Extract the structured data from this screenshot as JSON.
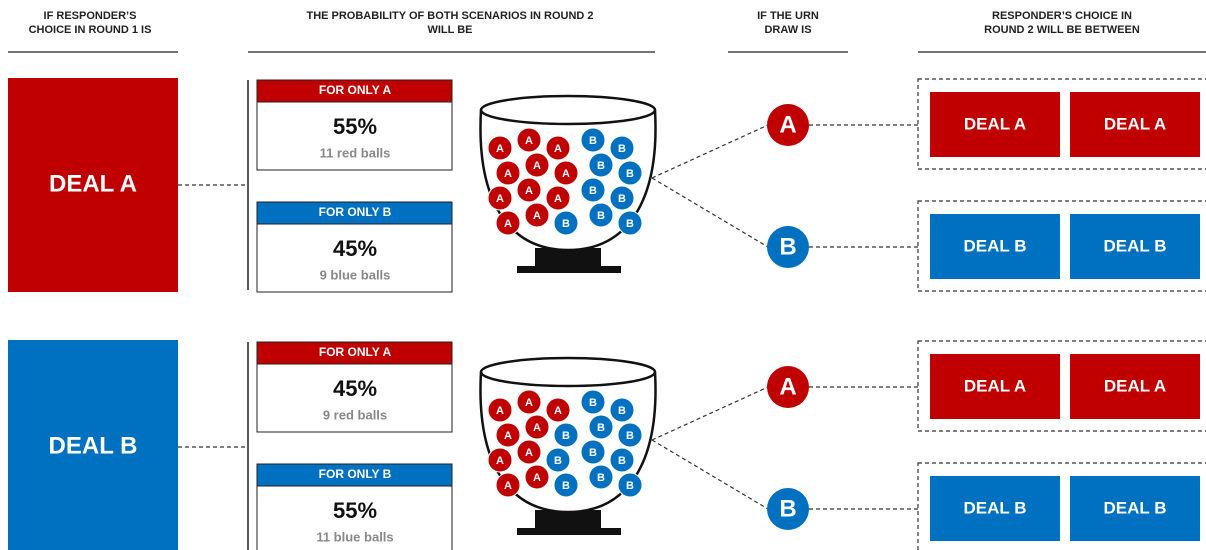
{
  "headers": [
    [
      "IF RESPONDER’S",
      "CHOICE IN ROUND 1 IS"
    ],
    [
      "THE PROBABILITY OF BOTH SCENARIOS IN ROUND 2",
      "WILL BE"
    ],
    [
      "IF THE URN",
      "DRAW IS"
    ],
    [
      "RESPONDER’S CHOICE IN",
      "ROUND 2 WILL BE BETWEEN"
    ]
  ],
  "rows": [
    {
      "choice": "DEAL A",
      "color": "#c00000",
      "scenarios": [
        {
          "label": "FOR ONLY A",
          "percent": "55%",
          "balls": "11 red balls",
          "color": "#c00000"
        },
        {
          "label": "FOR ONLY B",
          "percent": "45%",
          "balls": "9 blue balls",
          "color": "#0070c0"
        }
      ],
      "urn": [
        {
          "label": "A",
          "color": "#c00000"
        },
        {
          "label": "A",
          "color": "#c00000"
        },
        {
          "label": "A",
          "color": "#c00000"
        },
        {
          "label": "B",
          "color": "#0070c0"
        },
        {
          "label": "B",
          "color": "#0070c0"
        },
        {
          "label": "A",
          "color": "#c00000"
        },
        {
          "label": "A",
          "color": "#c00000"
        },
        {
          "label": "A",
          "color": "#c00000"
        },
        {
          "label": "B",
          "color": "#0070c0"
        },
        {
          "label": "B",
          "color": "#0070c0"
        },
        {
          "label": "A",
          "color": "#c00000"
        },
        {
          "label": "A",
          "color": "#c00000"
        },
        {
          "label": "A",
          "color": "#c00000"
        },
        {
          "label": "B",
          "color": "#0070c0"
        },
        {
          "label": "B",
          "color": "#0070c0"
        },
        {
          "label": "A",
          "color": "#c00000"
        },
        {
          "label": "A",
          "color": "#c00000"
        },
        {
          "label": "B",
          "color": "#0070c0"
        },
        {
          "label": "B",
          "color": "#0070c0"
        },
        {
          "label": "B",
          "color": "#0070c0"
        }
      ],
      "draws": [
        {
          "letter": "A",
          "color": "#c00000",
          "deals": [
            "DEAL A",
            "DEAL A"
          ]
        },
        {
          "letter": "B",
          "color": "#0070c0",
          "deals": [
            "DEAL B",
            "DEAL B"
          ]
        }
      ]
    },
    {
      "choice": "DEAL B",
      "color": "#0070c0",
      "scenarios": [
        {
          "label": "FOR ONLY A",
          "percent": "45%",
          "balls": "9 red balls",
          "color": "#c00000"
        },
        {
          "label": "FOR ONLY B",
          "percent": "55%",
          "balls": "11 blue balls",
          "color": "#0070c0"
        }
      ],
      "urn": [
        {
          "label": "A",
          "color": "#c00000"
        },
        {
          "label": "A",
          "color": "#c00000"
        },
        {
          "label": "A",
          "color": "#c00000"
        },
        {
          "label": "B",
          "color": "#0070c0"
        },
        {
          "label": "B",
          "color": "#0070c0"
        },
        {
          "label": "A",
          "color": "#c00000"
        },
        {
          "label": "A",
          "color": "#c00000"
        },
        {
          "label": "B",
          "color": "#0070c0"
        },
        {
          "label": "B",
          "color": "#0070c0"
        },
        {
          "label": "B",
          "color": "#0070c0"
        },
        {
          "label": "A",
          "color": "#c00000"
        },
        {
          "label": "A",
          "color": "#c00000"
        },
        {
          "label": "B",
          "color": "#0070c0"
        },
        {
          "label": "B",
          "color": "#0070c0"
        },
        {
          "label": "B",
          "color": "#0070c0"
        },
        {
          "label": "A",
          "color": "#c00000"
        },
        {
          "label": "A",
          "color": "#c00000"
        },
        {
          "label": "B",
          "color": "#0070c0"
        },
        {
          "label": "B",
          "color": "#0070c0"
        },
        {
          "label": "B",
          "color": "#0070c0"
        }
      ],
      "draws": [
        {
          "letter": "A",
          "color": "#c00000",
          "deals": [
            "DEAL A",
            "DEAL A"
          ]
        },
        {
          "letter": "B",
          "color": "#0070c0",
          "deals": [
            "DEAL B",
            "DEAL B"
          ]
        }
      ]
    }
  ]
}
